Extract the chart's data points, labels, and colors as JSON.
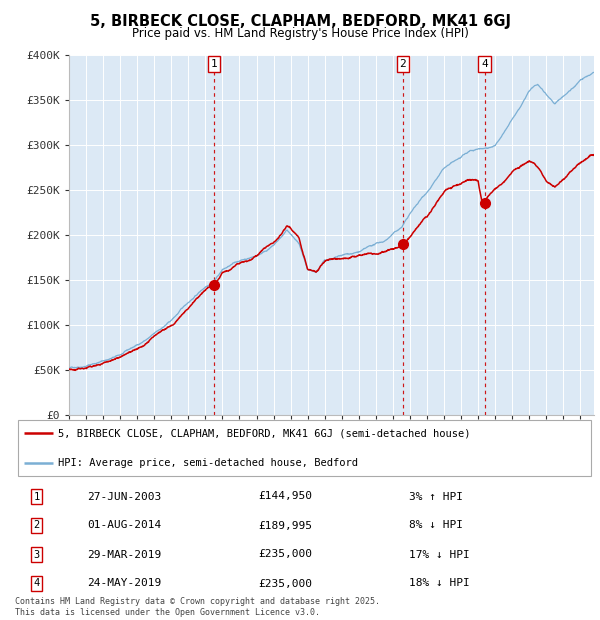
{
  "title": "5, BIRBECK CLOSE, CLAPHAM, BEDFORD, MK41 6GJ",
  "subtitle": "Price paid vs. HM Land Registry's House Price Index (HPI)",
  "background_color": "#ffffff",
  "plot_bg_color": "#dce9f5",
  "grid_color": "#ffffff",
  "hpi_line_color": "#7bafd4",
  "price_line_color": "#cc0000",
  "dot_color": "#cc0000",
  "vline_color": "#cc0000",
  "ylim": [
    0,
    400000
  ],
  "yticks": [
    0,
    50000,
    100000,
    150000,
    200000,
    250000,
    300000,
    350000,
    400000
  ],
  "ytick_labels": [
    "£0",
    "£50K",
    "£100K",
    "£150K",
    "£200K",
    "£250K",
    "£300K",
    "£350K",
    "£400K"
  ],
  "shown_transactions": [
    {
      "num": "1",
      "date_x": 2003.49,
      "price": 144950
    },
    {
      "num": "2",
      "date_x": 2014.58,
      "price": 189995
    },
    {
      "num": "4",
      "date_x": 2019.38,
      "price": 235000
    }
  ],
  "legend_entries": [
    "5, BIRBECK CLOSE, CLAPHAM, BEDFORD, MK41 6GJ (semi-detached house)",
    "HPI: Average price, semi-detached house, Bedford"
  ],
  "table_rows": [
    {
      "num": "1",
      "date": "27-JUN-2003",
      "price": "£144,950",
      "hpi": "3% ↑ HPI"
    },
    {
      "num": "2",
      "date": "01-AUG-2014",
      "price": "£189,995",
      "hpi": "8% ↓ HPI"
    },
    {
      "num": "3",
      "date": "29-MAR-2019",
      "price": "£235,000",
      "hpi": "17% ↓ HPI"
    },
    {
      "num": "4",
      "date": "24-MAY-2019",
      "price": "£235,000",
      "hpi": "18% ↓ HPI"
    }
  ],
  "footnote": "Contains HM Land Registry data © Crown copyright and database right 2025.\nThis data is licensed under the Open Government Licence v3.0.",
  "xmin": 1995.0,
  "xmax": 2025.8
}
